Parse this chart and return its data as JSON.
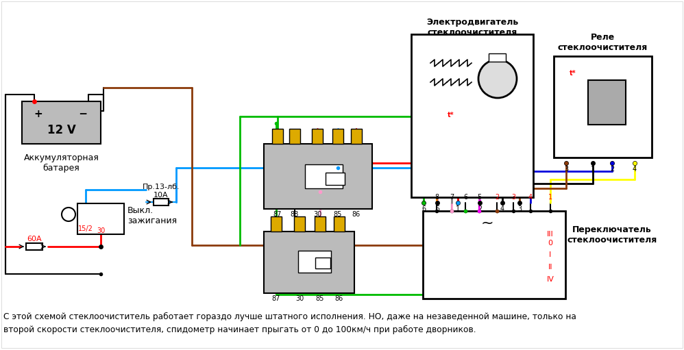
{
  "caption1": "С этой схемой стеклоочиститель работает гораздо лучше штатного исполнения. НО, даже на незаведенной машине, только на",
  "caption2": "второй скорости стеклоочистителя, спидометр начинает прыгать от 0 до 100км/ч при работе дворников.",
  "label_battery": "Аккумуляторная\nбатарея",
  "label_ignition": "Выкл.\nзажигания",
  "label_fuse13": "Пр.13-лб.\n10А",
  "label_60A": "60А",
  "label_motor": "Электродвигатель\nстеклоочистителя",
  "label_relay_box": "Реле\nстеклоочистителя",
  "label_switch": "Переключатель\nстеклоочистителя",
  "bg": "#ffffff",
  "c_black": "#000000",
  "c_red": "#ff0000",
  "c_blue": "#0099ff",
  "c_green": "#00bb00",
  "c_brown": "#8B3A0A",
  "c_pink": "#ff99cc",
  "c_magenta": "#ff00ff",
  "c_yellow": "#ffff00",
  "c_dkblue": "#0000dd",
  "c_gray": "#888888"
}
